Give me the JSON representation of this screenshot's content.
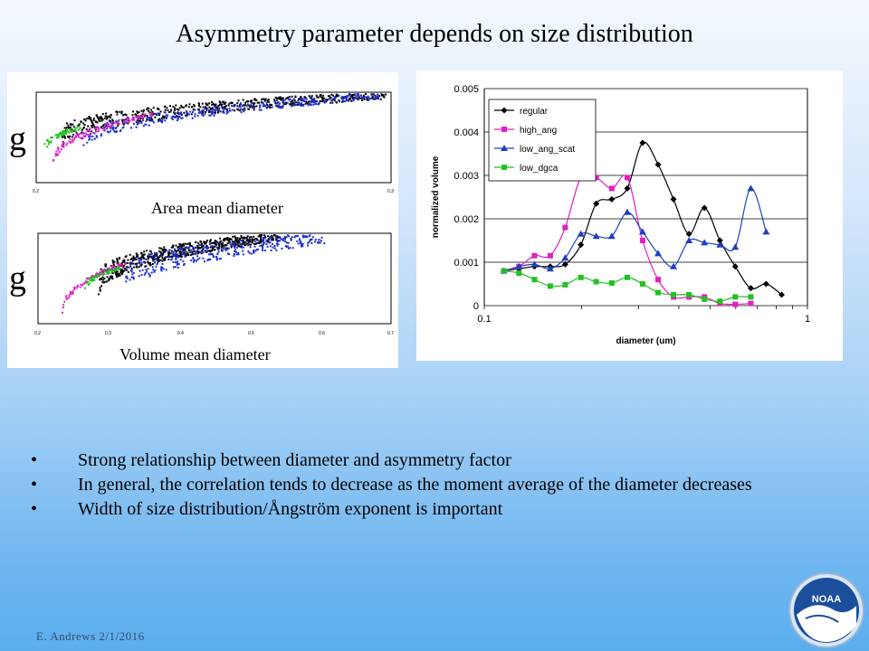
{
  "slide": {
    "title": "Asymmetry parameter depends on size distribution",
    "footer": "E. Andrews   2/1/2016"
  },
  "left_figure": {
    "g_label_top": "g",
    "g_label_bottom": "g",
    "caption_top": "Area mean diameter",
    "caption_bottom": "Volume mean diameter"
  },
  "bullets": [
    "Strong relationship between diameter and asymmetry factor",
    "In general, the correlation tends to decrease as the moment average of the diameter decreases",
    "Width of size distribution/Ångström  exponent is important"
  ],
  "logo": {
    "text": "NOAA",
    "icon": "noaa-logo-icon"
  },
  "chart_data": {
    "type": "line",
    "xlabel": "diameter (um)",
    "ylabel": "normalized volume",
    "x_scale": "log",
    "xlim": [
      0.1,
      1
    ],
    "ylim": [
      0,
      0.005
    ],
    "yticks": [
      "0",
      "0.001",
      "0.002",
      "0.003",
      "0.004",
      "0.005"
    ],
    "xticks": [
      "0.1",
      "1"
    ],
    "grid": "horizontal",
    "legend_position": "top-left",
    "x": [
      0.115,
      0.128,
      0.143,
      0.16,
      0.178,
      0.199,
      0.222,
      0.248,
      0.277,
      0.309,
      0.345,
      0.385,
      0.43,
      0.48,
      0.536,
      0.598,
      0.668,
      0.745,
      0.832,
      0.929,
      0.98
    ],
    "series": [
      {
        "name": "regular",
        "color": "#000000",
        "marker": "diamond",
        "values": [
          0.0008,
          0.00085,
          0.0009,
          0.0009,
          0.00095,
          0.0014,
          0.00235,
          0.00245,
          0.0027,
          0.00375,
          0.00325,
          0.00245,
          0.00165,
          0.00225,
          0.0015,
          0.0009,
          0.0004,
          0.0005,
          0.00025,
          null,
          null
        ]
      },
      {
        "name": "high_ang",
        "color": "#e020c0",
        "marker": "square",
        "values": [
          0.0008,
          0.0009,
          0.00115,
          0.00115,
          0.0018,
          0.00295,
          0.00295,
          0.0027,
          0.00295,
          0.0015,
          0.0006,
          0.0002,
          0.0002,
          0.0002,
          5e-05,
          3e-05,
          5e-05,
          null,
          null,
          null,
          null
        ]
      },
      {
        "name": "low_ang_scat",
        "color": "#1f3fbf",
        "marker": "triangle",
        "values": [
          0.0008,
          0.0009,
          0.00095,
          0.00085,
          0.0011,
          0.00165,
          0.0016,
          0.0016,
          0.00215,
          0.0017,
          0.0012,
          0.0009,
          0.0015,
          0.00145,
          0.0014,
          0.00135,
          0.0027,
          0.0017,
          null,
          null,
          null
        ]
      },
      {
        "name": "low_dgca",
        "color": "#22c022",
        "marker": "square",
        "values": [
          0.0008,
          0.00075,
          0.0006,
          0.00045,
          0.00048,
          0.00065,
          0.00055,
          0.00052,
          0.00065,
          0.0005,
          0.0003,
          0.00025,
          0.00025,
          0.00015,
          0.0001,
          0.0002,
          0.0002,
          null,
          null,
          null,
          null
        ]
      }
    ]
  }
}
